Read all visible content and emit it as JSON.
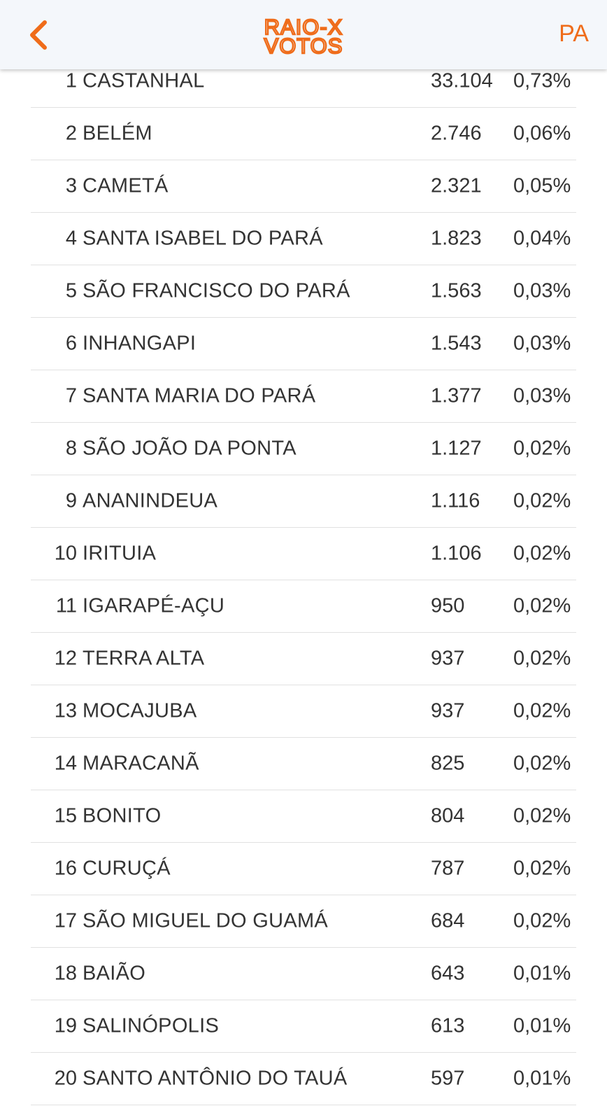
{
  "header": {
    "back_icon": "chevron-left-icon",
    "logo_line1": "RAIO-X",
    "logo_line2": "VOTOS",
    "state": "PA",
    "accent_color": "#ef6c1a"
  },
  "rows": [
    {
      "rank": "1",
      "city": "CASTANHAL",
      "votes": "33.104",
      "pct": "0,73%"
    },
    {
      "rank": "2",
      "city": "BELÉM",
      "votes": "2.746",
      "pct": "0,06%"
    },
    {
      "rank": "3",
      "city": "CAMETÁ",
      "votes": "2.321",
      "pct": "0,05%"
    },
    {
      "rank": "4",
      "city": "SANTA ISABEL DO PARÁ",
      "votes": "1.823",
      "pct": "0,04%"
    },
    {
      "rank": "5",
      "city": "SÃO FRANCISCO DO PARÁ",
      "votes": "1.563",
      "pct": "0,03%"
    },
    {
      "rank": "6",
      "city": "INHANGAPI",
      "votes": "1.543",
      "pct": "0,03%"
    },
    {
      "rank": "7",
      "city": "SANTA MARIA DO PARÁ",
      "votes": "1.377",
      "pct": "0,03%"
    },
    {
      "rank": "8",
      "city": "SÃO JOÃO DA PONTA",
      "votes": "1.127",
      "pct": "0,02%"
    },
    {
      "rank": "9",
      "city": "ANANINDEUA",
      "votes": "1.116",
      "pct": "0,02%"
    },
    {
      "rank": "10",
      "city": "IRITUIA",
      "votes": "1.106",
      "pct": "0,02%"
    },
    {
      "rank": "11",
      "city": "IGARAPÉ-AÇU",
      "votes": "950",
      "pct": "0,02%"
    },
    {
      "rank": "12",
      "city": "TERRA ALTA",
      "votes": "937",
      "pct": "0,02%"
    },
    {
      "rank": "13",
      "city": "MOCAJUBA",
      "votes": "937",
      "pct": "0,02%"
    },
    {
      "rank": "14",
      "city": "MARACANÃ",
      "votes": "825",
      "pct": "0,02%"
    },
    {
      "rank": "15",
      "city": "BONITO",
      "votes": "804",
      "pct": "0,02%"
    },
    {
      "rank": "16",
      "city": "CURUÇÁ",
      "votes": "787",
      "pct": "0,02%"
    },
    {
      "rank": "17",
      "city": "SÃO MIGUEL DO GUAMÁ",
      "votes": "684",
      "pct": "0,02%"
    },
    {
      "rank": "18",
      "city": "BAIÃO",
      "votes": "643",
      "pct": "0,01%"
    },
    {
      "rank": "19",
      "city": "SALINÓPOLIS",
      "votes": "613",
      "pct": "0,01%"
    },
    {
      "rank": "20",
      "city": "SANTO ANTÔNIO DO TAUÁ",
      "votes": "597",
      "pct": "0,01%"
    }
  ]
}
